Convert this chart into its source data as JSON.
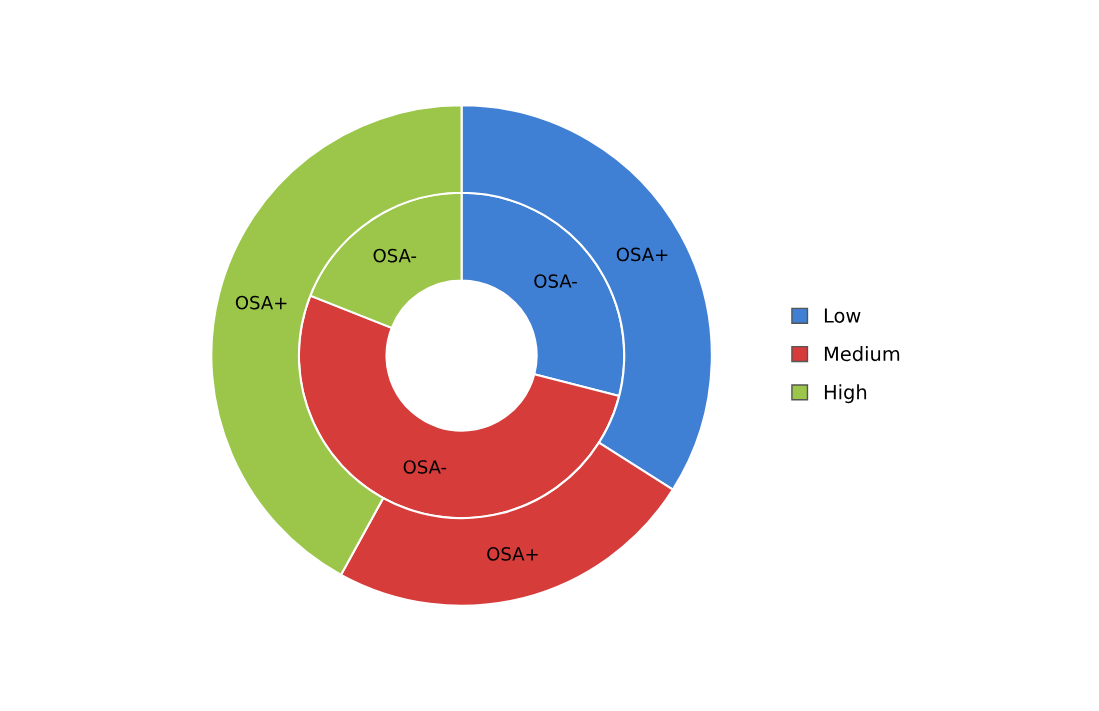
{
  "chart_data": {
    "type": "donut",
    "categories": [
      "Low",
      "Medium",
      "High"
    ],
    "colors": [
      "#3f7fd4",
      "#d63c3a",
      "#9bc64a"
    ],
    "series": [
      {
        "name": "OSA-",
        "values": [
          29,
          52,
          19
        ]
      },
      {
        "name": "OSA+",
        "values": [
          34,
          24,
          42
        ]
      }
    ],
    "legend": "right"
  }
}
